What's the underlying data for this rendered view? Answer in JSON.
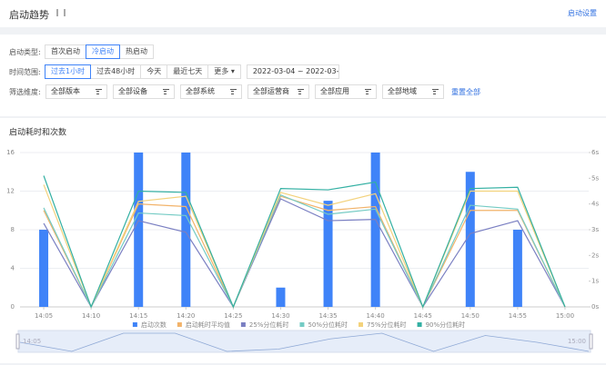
{
  "page": {
    "header": {
      "title": "启动趋势",
      "action": "启动设置"
    },
    "launch_type": {
      "label": "启动类型:",
      "options": [
        "首次启动",
        "冷启动",
        "热启动"
      ],
      "selected": 1
    },
    "time_range": {
      "label": "时间范围:",
      "options": [
        "过去1小时",
        "过去48小时",
        "今天",
        "最近七天",
        "更多"
      ],
      "selected": 0,
      "date_range": "2022-03-04 ~ 2022-03-0"
    },
    "dimensions": {
      "label": "筛选维度:",
      "options": [
        "全部版本",
        "全部设备",
        "全部系统",
        "全部运营商",
        "全部应用",
        "全部地域"
      ],
      "reset": "重置全部"
    }
  },
  "chart_data": {
    "type": "combo",
    "title": "启动耗时和次数",
    "categories": [
      "14:05",
      "14:10",
      "14:15",
      "14:20",
      "14:25",
      "14:30",
      "14:35",
      "14:40",
      "14:45",
      "14:50",
      "14:55",
      "15:00"
    ],
    "series": [
      {
        "name": "启动次数",
        "type": "bar",
        "color": "#3f83f8",
        "values": [
          8,
          0,
          16,
          16,
          0,
          2,
          11,
          16,
          0,
          14,
          8,
          0
        ]
      },
      {
        "name": "启动耗时平均值",
        "type": "line",
        "axis": "y2",
        "color": "#f2b36a",
        "values": [
          3.75,
          0,
          4.0,
          3.9,
          0,
          4.3,
          3.75,
          3.9,
          0,
          3.75,
          3.75,
          0
        ]
      },
      {
        "name": "25%分位耗时",
        "type": "line",
        "axis": "y2",
        "color": "#7a7fc2",
        "values": [
          3.25,
          0,
          3.35,
          2.9,
          0,
          4.2,
          3.35,
          3.4,
          0,
          2.85,
          3.35,
          0
        ]
      },
      {
        "name": "50%分位耗时",
        "type": "line",
        "axis": "y2",
        "color": "#74cbc4",
        "values": [
          3.85,
          0,
          3.65,
          3.55,
          0,
          4.35,
          3.6,
          3.8,
          0,
          3.95,
          3.8,
          0
        ]
      },
      {
        "name": "75%分位耗时",
        "type": "line",
        "axis": "y2",
        "color": "#f3d27c",
        "values": [
          4.75,
          0,
          4.1,
          4.3,
          0,
          4.45,
          3.95,
          4.4,
          0,
          4.5,
          4.5,
          0
        ]
      },
      {
        "name": "90%分位耗时",
        "type": "line",
        "axis": "y2",
        "color": "#33b0a3",
        "values": [
          5.1,
          0,
          4.5,
          4.45,
          0,
          4.6,
          4.55,
          4.85,
          0,
          4.6,
          4.65,
          0
        ]
      }
    ],
    "ylim": [
      0,
      16
    ],
    "yticks": [
      0,
      4,
      8,
      12,
      16
    ],
    "y2lim": [
      0,
      6
    ],
    "y2ticks": [
      {
        "value": 0,
        "label": "0s"
      },
      {
        "value": 1,
        "label": "1s"
      },
      {
        "value": 2,
        "label": "2s"
      },
      {
        "value": 3,
        "label": "3s"
      },
      {
        "value": 4,
        "label": "4s"
      },
      {
        "value": 5,
        "label": "5s"
      },
      {
        "value": 6,
        "label": "6s"
      }
    ],
    "grid": true,
    "legend": "bottom",
    "slider": true
  }
}
